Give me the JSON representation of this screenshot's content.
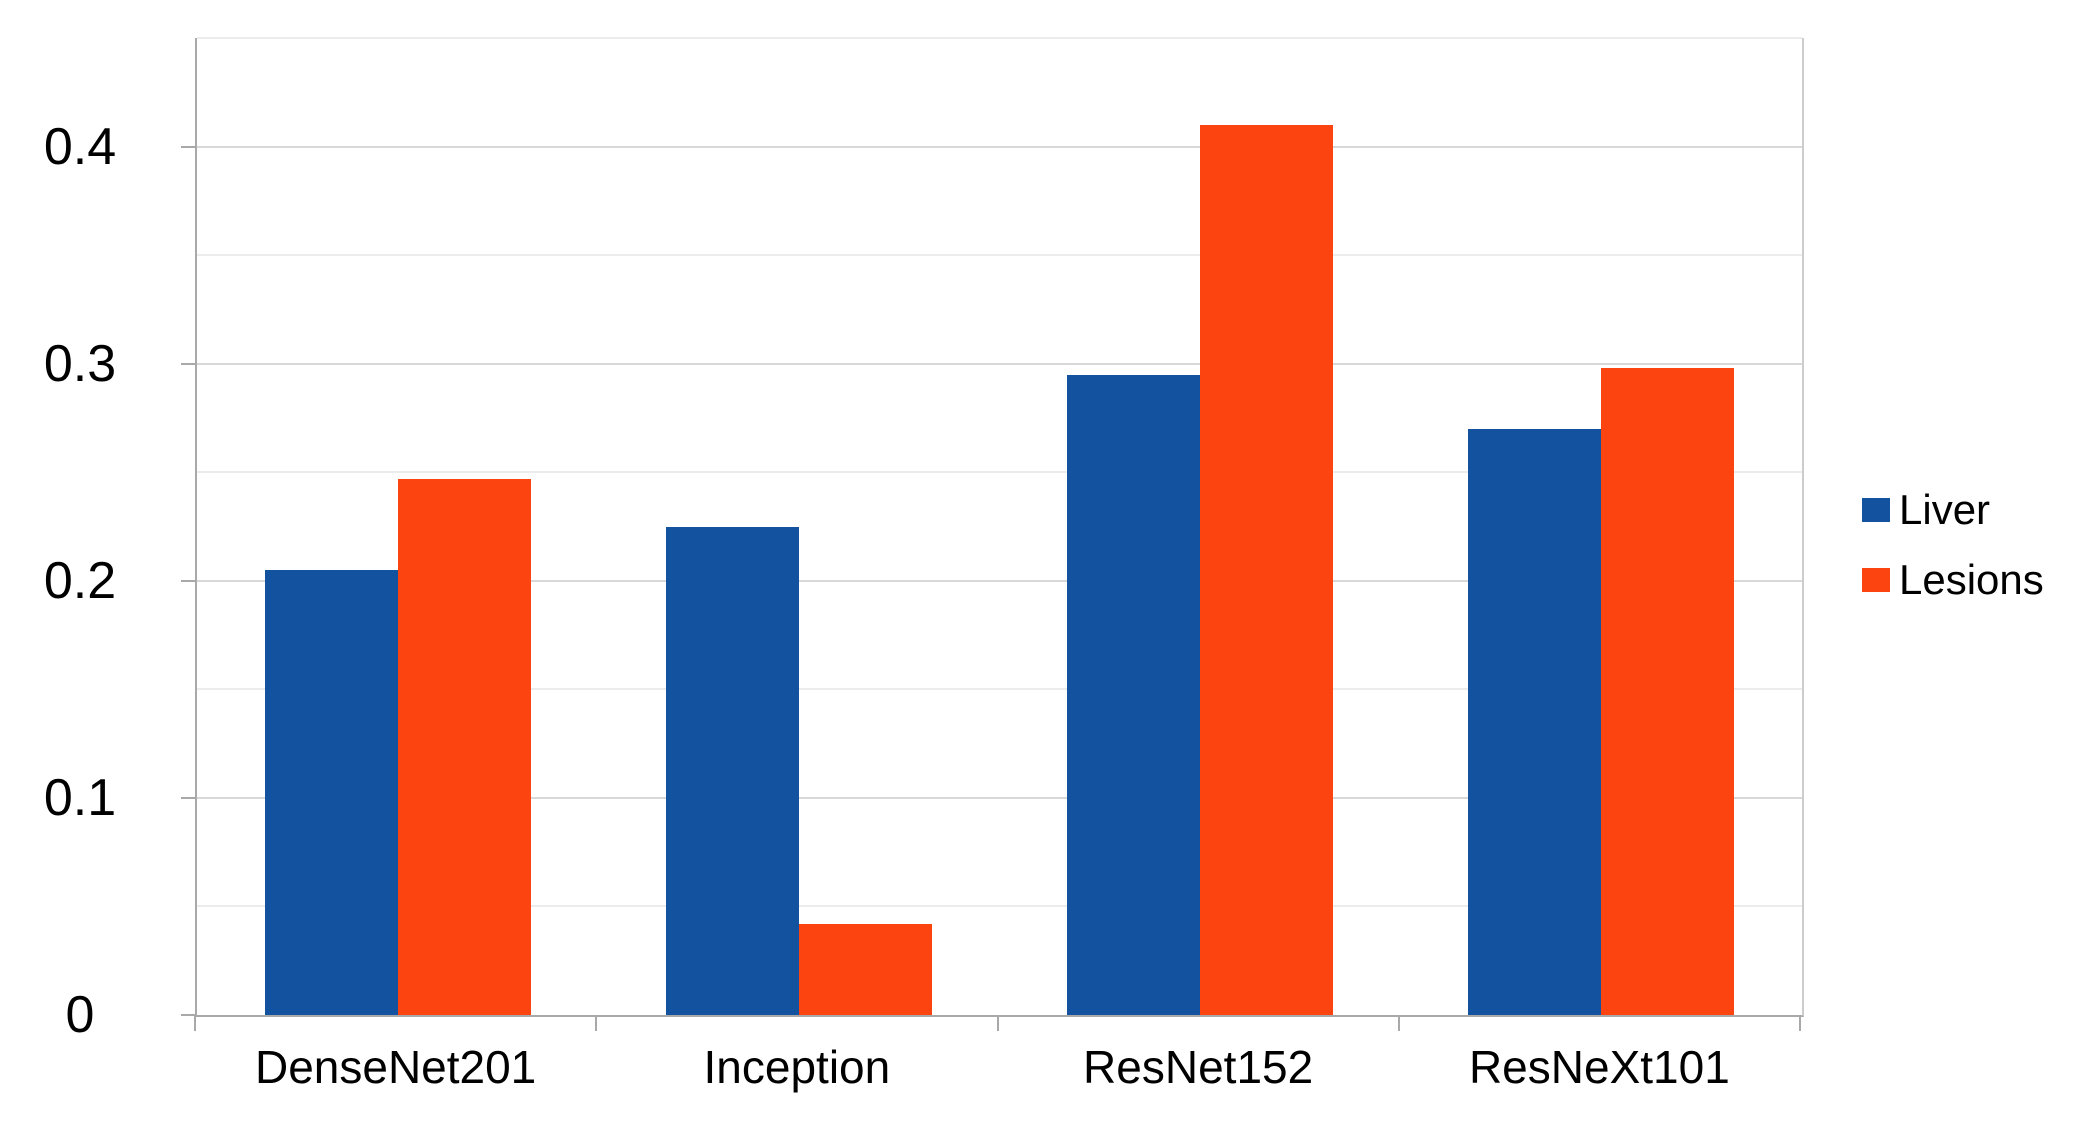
{
  "chart_data": {
    "type": "bar",
    "title": "",
    "xlabel": "",
    "ylabel": "",
    "categories": [
      "DenseNet201",
      "Inception",
      "ResNet152",
      "ResNeXt101"
    ],
    "series": [
      {
        "name": "Liver",
        "color": "#12529e",
        "values": [
          0.205,
          0.225,
          0.295,
          0.27
        ]
      },
      {
        "name": "Lesions",
        "color": "#fc4410",
        "values": [
          0.247,
          0.042,
          0.41,
          0.298
        ]
      }
    ],
    "ylim": [
      0,
      0.45
    ],
    "yticks": [
      0,
      0.1,
      0.2,
      0.3,
      0.4
    ],
    "ytick_labels": [
      "0",
      "0.1",
      "0.2",
      "0.3",
      "0.4"
    ],
    "major_step": 0.1,
    "minor_step": 0.05,
    "grid": true,
    "legend_position": "right"
  },
  "colors": {
    "background": "#ffffff",
    "axis": "#a9a9a9",
    "grid_major": "#d8d8d8",
    "grid_minor": "#ececec",
    "text": "#000000"
  }
}
